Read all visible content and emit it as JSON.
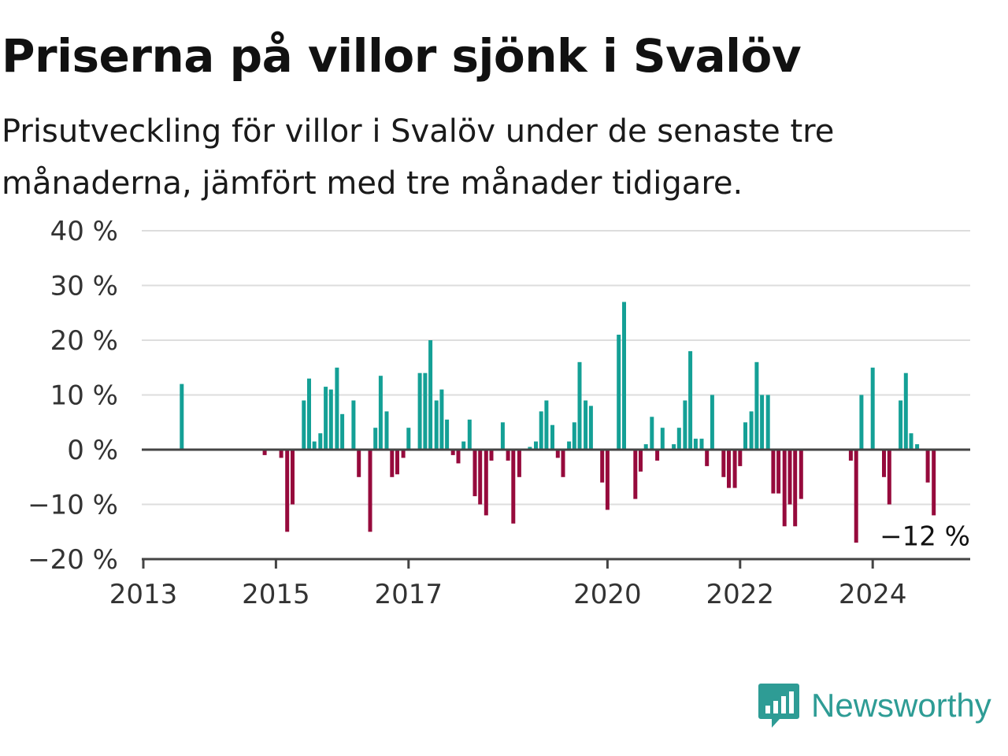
{
  "title": "Priserna på villor sjönk i Svalöv",
  "subtitle": "Prisutveckling för villor i Svalöv under de senaste tre månaderna, jämfört med tre månader tidigare.",
  "brand": {
    "name": "Newsworthy",
    "color": "#2e9c95",
    "icon": "newsworthy-logo-icon"
  },
  "colors": {
    "positive": "#14a096",
    "negative": "#960a3c",
    "grid": "#dddddd",
    "zero": "#444444"
  },
  "chart_data": {
    "type": "bar",
    "ylim": [
      -20,
      40
    ],
    "y_ticks": [
      40,
      30,
      20,
      10,
      0,
      -10,
      -20
    ],
    "y_tick_labels": [
      "40 %",
      "30 %",
      "20 %",
      "10 %",
      "0 %",
      "−10 %",
      "−20 %"
    ],
    "x_ticks": [
      2013,
      2015,
      2017,
      2020,
      2022,
      2024
    ],
    "x_tick_labels": [
      "2013",
      "2015",
      "2017",
      "2020",
      "2022",
      "2024"
    ],
    "x_unit": "year (decimal)",
    "y_unit": "percent",
    "grid": true,
    "last_label": "−12 %",
    "points": [
      {
        "x": 2013.58,
        "y": 12
      },
      {
        "x": 2014.83,
        "y": -1
      },
      {
        "x": 2015.08,
        "y": -1.5
      },
      {
        "x": 2015.17,
        "y": -15
      },
      {
        "x": 2015.25,
        "y": -10
      },
      {
        "x": 2015.42,
        "y": 9
      },
      {
        "x": 2015.5,
        "y": 13
      },
      {
        "x": 2015.58,
        "y": 1.5
      },
      {
        "x": 2015.67,
        "y": 3
      },
      {
        "x": 2015.75,
        "y": 11.5
      },
      {
        "x": 2015.83,
        "y": 11
      },
      {
        "x": 2015.92,
        "y": 15
      },
      {
        "x": 2016.0,
        "y": 6.5
      },
      {
        "x": 2016.17,
        "y": 9
      },
      {
        "x": 2016.25,
        "y": -5
      },
      {
        "x": 2016.42,
        "y": -15
      },
      {
        "x": 2016.5,
        "y": 4
      },
      {
        "x": 2016.58,
        "y": 13.5
      },
      {
        "x": 2016.67,
        "y": 7
      },
      {
        "x": 2016.75,
        "y": -5
      },
      {
        "x": 2016.83,
        "y": -4.5
      },
      {
        "x": 2016.92,
        "y": -1.5
      },
      {
        "x": 2017.0,
        "y": 4
      },
      {
        "x": 2017.17,
        "y": 14
      },
      {
        "x": 2017.25,
        "y": 14
      },
      {
        "x": 2017.33,
        "y": 20
      },
      {
        "x": 2017.42,
        "y": 9
      },
      {
        "x": 2017.5,
        "y": 11
      },
      {
        "x": 2017.58,
        "y": 5.5
      },
      {
        "x": 2017.67,
        "y": -1
      },
      {
        "x": 2017.75,
        "y": -2.5
      },
      {
        "x": 2017.83,
        "y": 1.5
      },
      {
        "x": 2017.92,
        "y": 5.5
      },
      {
        "x": 2018.0,
        "y": -8.5
      },
      {
        "x": 2018.08,
        "y": -10
      },
      {
        "x": 2018.17,
        "y": -12
      },
      {
        "x": 2018.25,
        "y": -2
      },
      {
        "x": 2018.42,
        "y": 5
      },
      {
        "x": 2018.5,
        "y": -2
      },
      {
        "x": 2018.58,
        "y": -13.5
      },
      {
        "x": 2018.67,
        "y": -5
      },
      {
        "x": 2018.83,
        "y": 0.5
      },
      {
        "x": 2018.92,
        "y": 1.5
      },
      {
        "x": 2019.0,
        "y": 7
      },
      {
        "x": 2019.08,
        "y": 9
      },
      {
        "x": 2019.17,
        "y": 4.5
      },
      {
        "x": 2019.25,
        "y": -1.5
      },
      {
        "x": 2019.33,
        "y": -5
      },
      {
        "x": 2019.42,
        "y": 1.5
      },
      {
        "x": 2019.5,
        "y": 5
      },
      {
        "x": 2019.58,
        "y": 16
      },
      {
        "x": 2019.67,
        "y": 9
      },
      {
        "x": 2019.75,
        "y": 8
      },
      {
        "x": 2019.92,
        "y": -6
      },
      {
        "x": 2020.0,
        "y": -11
      },
      {
        "x": 2020.17,
        "y": 21
      },
      {
        "x": 2020.25,
        "y": 27
      },
      {
        "x": 2020.42,
        "y": -9
      },
      {
        "x": 2020.5,
        "y": -4
      },
      {
        "x": 2020.58,
        "y": 1
      },
      {
        "x": 2020.67,
        "y": 6
      },
      {
        "x": 2020.75,
        "y": -2
      },
      {
        "x": 2020.83,
        "y": 4
      },
      {
        "x": 2021.0,
        "y": 1
      },
      {
        "x": 2021.08,
        "y": 4
      },
      {
        "x": 2021.17,
        "y": 9
      },
      {
        "x": 2021.25,
        "y": 18
      },
      {
        "x": 2021.33,
        "y": 2
      },
      {
        "x": 2021.42,
        "y": 2
      },
      {
        "x": 2021.5,
        "y": -3
      },
      {
        "x": 2021.58,
        "y": 10
      },
      {
        "x": 2021.75,
        "y": -5
      },
      {
        "x": 2021.83,
        "y": -7
      },
      {
        "x": 2021.92,
        "y": -7
      },
      {
        "x": 2022.0,
        "y": -3
      },
      {
        "x": 2022.08,
        "y": 5
      },
      {
        "x": 2022.17,
        "y": 7
      },
      {
        "x": 2022.25,
        "y": 16
      },
      {
        "x": 2022.33,
        "y": 10
      },
      {
        "x": 2022.42,
        "y": 10
      },
      {
        "x": 2022.5,
        "y": -8
      },
      {
        "x": 2022.58,
        "y": -8
      },
      {
        "x": 2022.67,
        "y": -14
      },
      {
        "x": 2022.75,
        "y": -10
      },
      {
        "x": 2022.83,
        "y": -14
      },
      {
        "x": 2022.92,
        "y": -9
      },
      {
        "x": 2023.67,
        "y": -2
      },
      {
        "x": 2023.75,
        "y": -17
      },
      {
        "x": 2023.83,
        "y": 10
      },
      {
        "x": 2024.0,
        "y": 15
      },
      {
        "x": 2024.17,
        "y": -5
      },
      {
        "x": 2024.25,
        "y": -10
      },
      {
        "x": 2024.42,
        "y": 9
      },
      {
        "x": 2024.5,
        "y": 14
      },
      {
        "x": 2024.58,
        "y": 3
      },
      {
        "x": 2024.67,
        "y": 1
      },
      {
        "x": 2024.83,
        "y": -6
      },
      {
        "x": 2024.92,
        "y": -12
      }
    ]
  }
}
